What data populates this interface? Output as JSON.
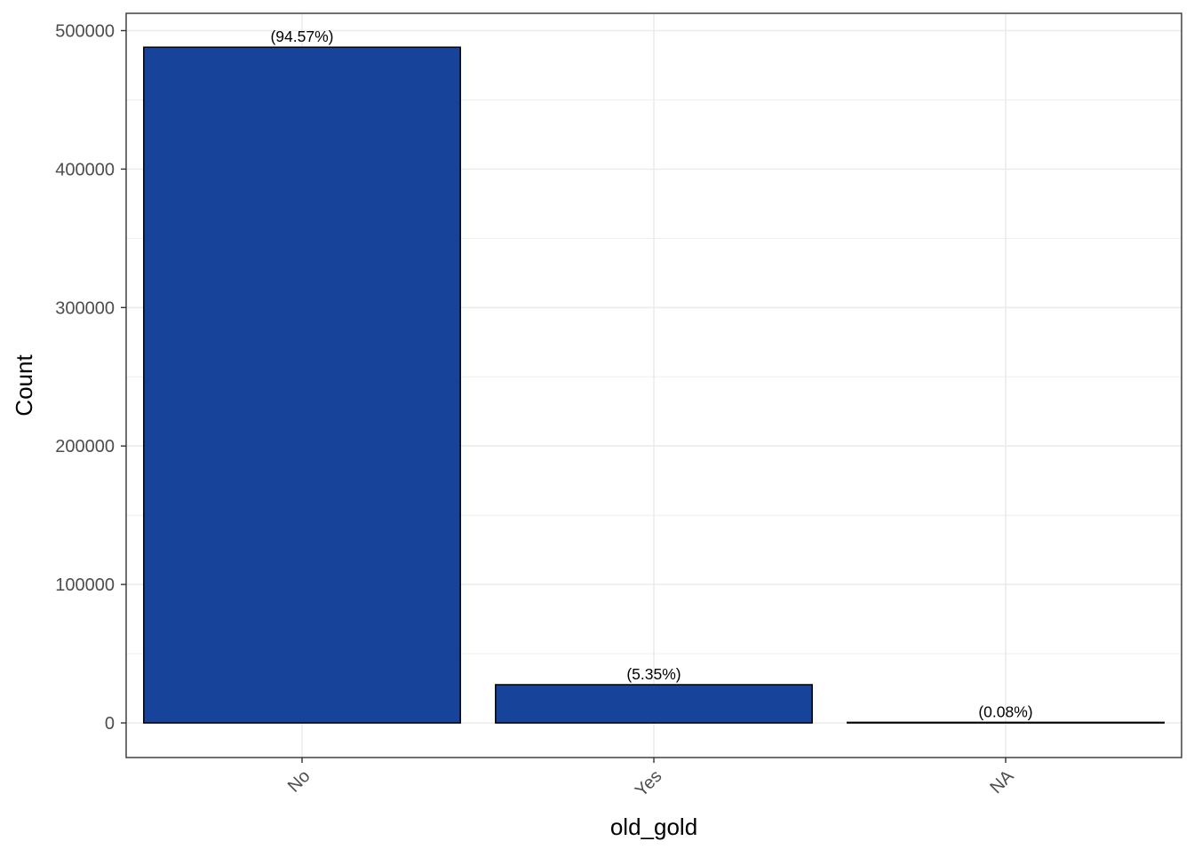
{
  "chart_data": {
    "type": "bar",
    "categories": [
      "No",
      "Yes",
      "NA"
    ],
    "values": [
      488000,
      27600,
      413
    ],
    "data_labels": [
      "(94.57%)",
      "(5.35%)",
      "(0.08%)"
    ],
    "title": "",
    "xlabel": "old_gold",
    "ylabel": "Count",
    "ylim": [
      -25000,
      512500
    ],
    "yticks": [
      0,
      100000,
      200000,
      300000,
      400000,
      500000
    ],
    "ytick_labels": [
      "0",
      "100000",
      "200000",
      "300000",
      "400000",
      "500000"
    ],
    "grid": true,
    "bar_color": "#17439A",
    "bar_outline": "#000000",
    "grid_color": "#EBEBEB",
    "panel_border": "#333333"
  }
}
